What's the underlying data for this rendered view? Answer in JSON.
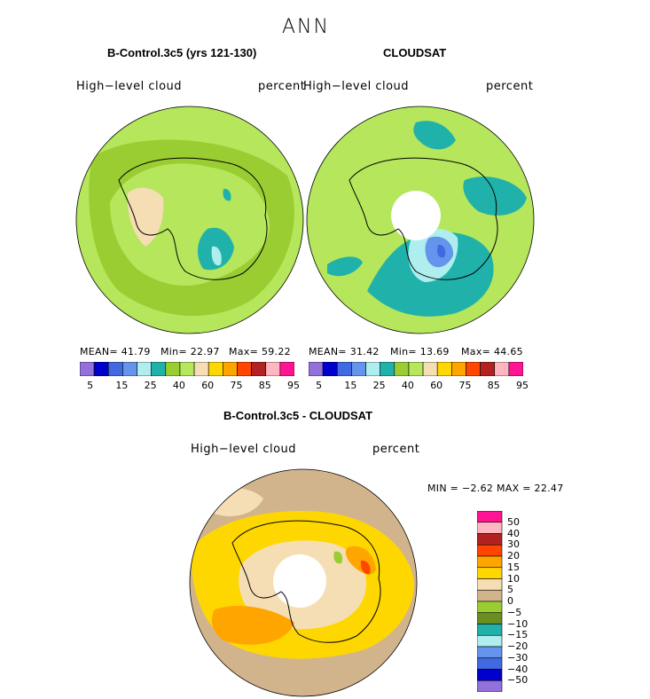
{
  "page": {
    "title": "ANN"
  },
  "panels": {
    "model": {
      "title": "B-Control.3c5 (yrs 121-130)",
      "variable": "High−level cloud",
      "units": "percent",
      "mean": "MEAN=  41.79",
      "min": "Min=  22.97",
      "max": "Max=  59.22"
    },
    "obs": {
      "title": "CLOUDSAT",
      "variable": "High−level cloud",
      "units": "percent",
      "mean": "MEAN=  31.42",
      "min": "Min=  13.69",
      "max": "Max=  44.65"
    },
    "diff": {
      "title": "B-Control.3c5 - CLOUDSAT",
      "variable": "High−level cloud",
      "units": "percent",
      "minmax": "MIN =   −2.62  MAX =   22.47"
    }
  },
  "colorbar_top": {
    "colors": [
      "#9370db",
      "#0000cd",
      "#4169e1",
      "#6495ed",
      "#aeeeee",
      "#20b2aa",
      "#9acd32",
      "#b5e65c",
      "#f5deb3",
      "#ffd700",
      "#ffa500",
      "#ff4500",
      "#b22222",
      "#ffb6c1",
      "#ff1493"
    ],
    "tick_labels": [
      "5",
      "15",
      "25",
      "40",
      "60",
      "75",
      "85",
      "95"
    ]
  },
  "colorbar_diff": {
    "colors": [
      "#ff1493",
      "#ffb6c1",
      "#b22222",
      "#ff4500",
      "#ffa500",
      "#ffd700",
      "#f5deb3",
      "#d2b48c",
      "#9acd32",
      "#6b8e23",
      "#20b2aa",
      "#aeeeee",
      "#6495ed",
      "#4169e1",
      "#0000cd",
      "#9370db"
    ],
    "tick_labels": [
      "50",
      "40",
      "30",
      "20",
      "15",
      "10",
      "5",
      "0",
      "−5",
      "−10",
      "−15",
      "−20",
      "−30",
      "−40",
      "−50"
    ]
  },
  "map_colors": {
    "light_green": "#b5e65c",
    "olive_green": "#9acd32",
    "teal": "#20b2aa",
    "wheat": "#f5deb3",
    "tan": "#d2b48c",
    "yellow": "#ffd700",
    "orange": "#ffa500",
    "light_blue": "#aeeeee",
    "cornflower": "#6495ed",
    "royal_blue": "#4169e1"
  }
}
